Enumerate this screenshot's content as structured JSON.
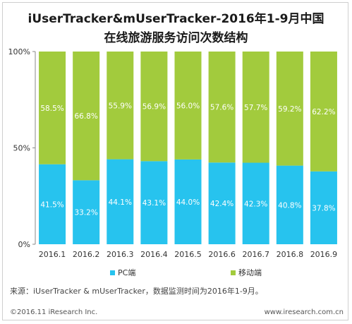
{
  "title_line1": "iUserTracker&mUserTracker-2016年1-9月中国",
  "title_line2": "在线旅游服务访问次数结构",
  "source": "来源：iUserTracker & mUserTracker，数据监测时间为2016年1-9月。",
  "copyright": "©2016.11 iResearch Inc.",
  "website": "www.iresearch.com.cn",
  "chart_data": {
    "type": "bar",
    "stacked": true,
    "categories": [
      "2016.1",
      "2016.2",
      "2016.3",
      "2016.4",
      "2016.5",
      "2016.6",
      "2016.7",
      "2016.8",
      "2016.9"
    ],
    "series": [
      {
        "name": "PC端",
        "color": "#27c3ee",
        "values": [
          41.5,
          33.2,
          44.1,
          43.1,
          44.0,
          42.4,
          42.3,
          40.8,
          37.8
        ]
      },
      {
        "name": "移动端",
        "color": "#a2cb3d",
        "values": [
          58.5,
          66.8,
          55.9,
          56.9,
          56.0,
          57.6,
          57.7,
          59.2,
          62.2
        ]
      }
    ],
    "ylim": [
      0,
      100
    ],
    "yticks": [
      {
        "value": 0,
        "label": "0%"
      },
      {
        "value": 50,
        "label": "50%"
      },
      {
        "value": 100,
        "label": "100%"
      }
    ],
    "legend_position": "bottom",
    "grid": false
  }
}
